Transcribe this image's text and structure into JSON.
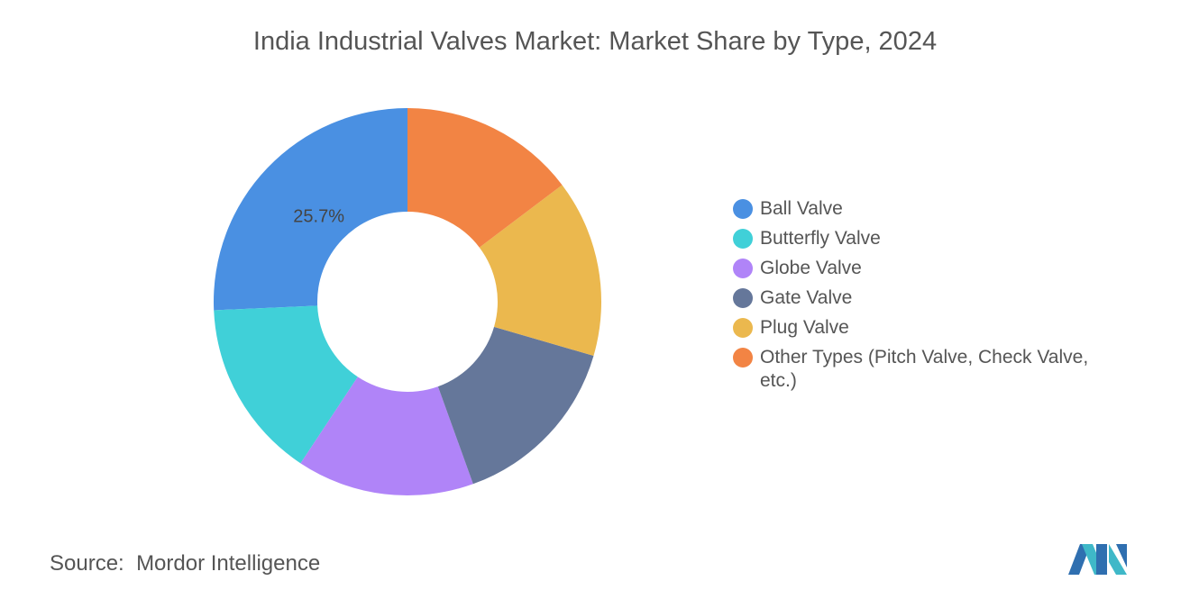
{
  "chart_data": {
    "type": "donut",
    "title": "India Industrial Valves Market: Market Share by Type, 2024",
    "categories": [
      "Ball Valve",
      "Butterfly Valve",
      "Globe Valve",
      "Gate Valve",
      "Plug Valve",
      "Other Types (Pitch Valve, Check Valve, etc.)"
    ],
    "values": [
      25.7,
      15.0,
      14.8,
      15.0,
      14.8,
      14.7
    ],
    "value_labels": [
      "25.7%",
      null,
      null,
      null,
      null,
      null
    ],
    "colors": [
      "#4a90e2",
      "#40d0d8",
      "#b084f8",
      "#65779a",
      "#ebb84e",
      "#f28444"
    ],
    "legend": "right",
    "source_label": "Source:",
    "source": "Mordor Intelligence"
  }
}
